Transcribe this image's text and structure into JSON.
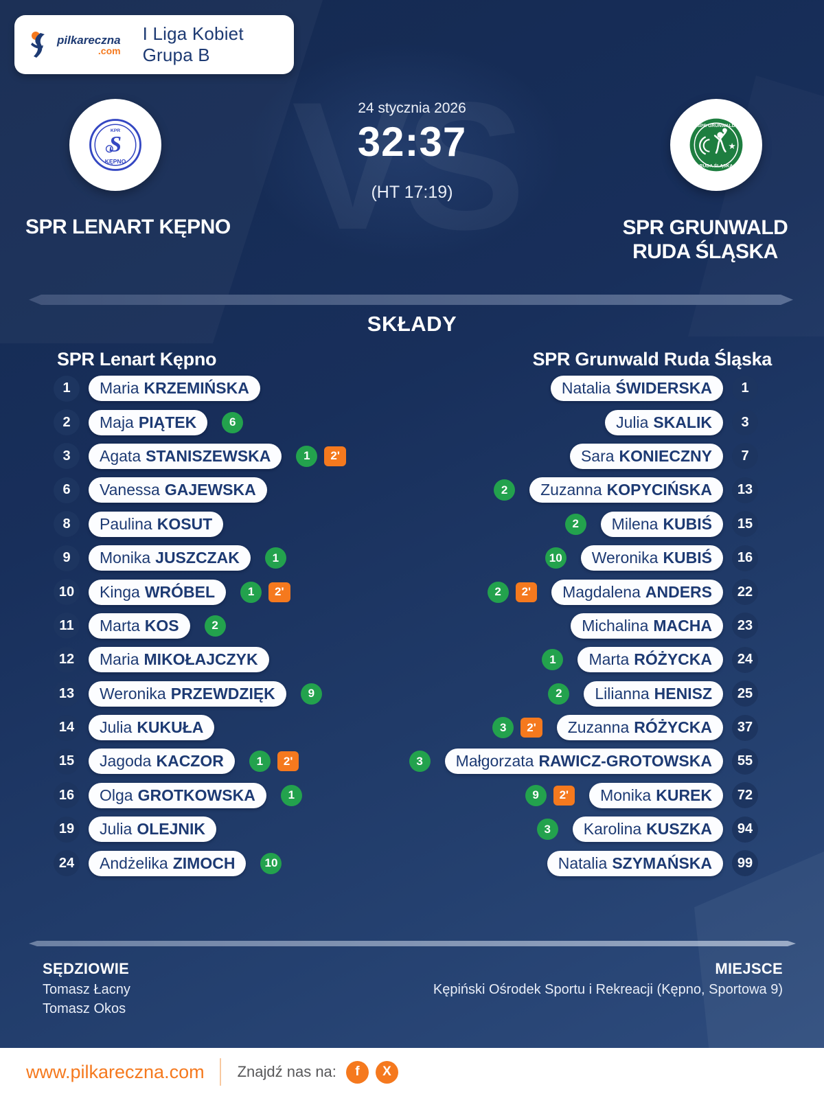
{
  "header_card": {
    "logo_name": "pilkareczna",
    "logo_tld": ".com",
    "league_title": "I Liga Kobiet Grupa B"
  },
  "match": {
    "date": "24 stycznia 2026",
    "score": "32:37",
    "halftime": "(HT 17:19)",
    "vs_watermark": "VS",
    "home_name": "SPR LENART KĘPNO",
    "away_name_line1": "SPR GRUNWALD",
    "away_name_line2": "RUDA ŚLĄSKA"
  },
  "lineups": {
    "title": "SKŁADY",
    "home_team": "SPR Lenart Kępno",
    "away_team": "SPR Grunwald Ruda Śląska",
    "home_players": [
      {
        "number": "1",
        "first": "Maria",
        "last": "KRZEMIŃSKA"
      },
      {
        "number": "2",
        "first": "Maja",
        "last": "PIĄTEK",
        "goals": "6"
      },
      {
        "number": "3",
        "first": "Agata",
        "last": "STANISZEWSKA",
        "goals": "1",
        "pen": "2'"
      },
      {
        "number": "6",
        "first": "Vanessa",
        "last": "GAJEWSKA"
      },
      {
        "number": "8",
        "first": "Paulina",
        "last": "KOSUT"
      },
      {
        "number": "9",
        "first": "Monika",
        "last": "JUSZCZAK",
        "goals": "1"
      },
      {
        "number": "10",
        "first": "Kinga",
        "last": "WRÓBEL",
        "goals": "1",
        "pen": "2'"
      },
      {
        "number": "11",
        "first": "Marta",
        "last": "KOS",
        "goals": "2"
      },
      {
        "number": "12",
        "first": "Maria",
        "last": "MIKOŁAJCZYK"
      },
      {
        "number": "13",
        "first": "Weronika",
        "last": "PRZEWDZIĘK",
        "goals": "9"
      },
      {
        "number": "14",
        "first": "Julia",
        "last": "KUKUŁA"
      },
      {
        "number": "15",
        "first": "Jagoda",
        "last": "KACZOR",
        "goals": "1",
        "pen": "2'"
      },
      {
        "number": "16",
        "first": "Olga",
        "last": "GROTKOWSKA",
        "goals": "1"
      },
      {
        "number": "19",
        "first": "Julia",
        "last": "OLEJNIK"
      },
      {
        "number": "24",
        "first": "Andżelika",
        "last": "ZIMOCH",
        "goals": "10"
      }
    ],
    "away_players": [
      {
        "number": "1",
        "first": "Natalia",
        "last": "ŚWIDERSKA"
      },
      {
        "number": "3",
        "first": "Julia",
        "last": "SKALIK"
      },
      {
        "number": "7",
        "first": "Sara",
        "last": "KONIECZNY"
      },
      {
        "number": "13",
        "first": "Zuzanna",
        "last": "KOPYCIŃSKA",
        "goals": "2"
      },
      {
        "number": "15",
        "first": "Milena",
        "last": "KUBIŚ",
        "goals": "2"
      },
      {
        "number": "16",
        "first": "Weronika",
        "last": "KUBIŚ",
        "goals": "10"
      },
      {
        "number": "22",
        "first": "Magdalena",
        "last": "ANDERS",
        "goals": "2",
        "pen": "2'"
      },
      {
        "number": "23",
        "first": "Michalina",
        "last": "MACHA"
      },
      {
        "number": "24",
        "first": "Marta",
        "last": "RÓŻYCKA",
        "goals": "1"
      },
      {
        "number": "25",
        "first": "Lilianna",
        "last": "HENISZ",
        "goals": "2"
      },
      {
        "number": "37",
        "first": "Zuzanna",
        "last": "RÓŻYCKA",
        "goals": "3",
        "pen": "2'"
      },
      {
        "number": "55",
        "first": "Małgorzata",
        "last": "RAWICZ-GROTOWSKA",
        "goals": "3"
      },
      {
        "number": "72",
        "first": "Monika",
        "last": "KUREK",
        "goals": "9",
        "pen": "2'"
      },
      {
        "number": "94",
        "first": "Karolina",
        "last": "KUSZKA",
        "goals": "3"
      },
      {
        "number": "99",
        "first": "Natalia",
        "last": "SZYMAŃSKA"
      }
    ]
  },
  "officials": {
    "referees_label": "SĘDZIOWIE",
    "referees": [
      "Tomasz Łacny",
      "Tomasz Okos"
    ],
    "venue_label": "MIEJSCE",
    "venue": "Kępiński Ośrodek Sportu i Rekreacji (Kępno, Sportowa 9)"
  },
  "footer_bar": {
    "website": "www.pilkareczna.com",
    "find_us": "Znajdź nas na:",
    "social": [
      {
        "icon": "facebook-icon",
        "glyph": "f"
      },
      {
        "icon": "x-icon",
        "glyph": "X"
      }
    ]
  },
  "colors": {
    "accent_orange": "#f5791e",
    "goal_green": "#23a24d",
    "navy_text": "#1d3a73",
    "background_top": "#142950",
    "background_bottom": "#2f4d7f"
  }
}
